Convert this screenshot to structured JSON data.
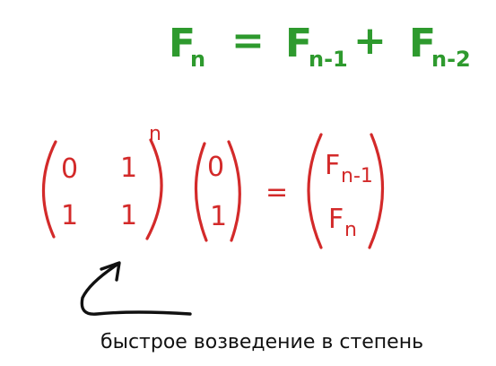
{
  "colors": {
    "formula_green": "#2e9a2e",
    "matrix_red": "#d32a2a",
    "ink_black": "#111111"
  },
  "recurrence": {
    "lhs_main": "F",
    "lhs_sub": "n",
    "equals": "=",
    "term1_main": "F",
    "term1_sub": "n-1",
    "plus": "+",
    "term2_main": "F",
    "term2_sub": "n-2"
  },
  "matrix_equation": {
    "transition_matrix": {
      "r1c1": "0",
      "r1c2": "1",
      "r2c1": "1",
      "r2c2": "1"
    },
    "exponent": "n",
    "start_vector": {
      "top": "0",
      "bottom": "1"
    },
    "equals": "=",
    "result_vector": {
      "top_main": "F",
      "top_sub": "n-1",
      "bottom_main": "F",
      "bottom_sub": "n"
    }
  },
  "annotation": {
    "caption": "быстрое возведение в степень",
    "icon": "curved-arrow-icon"
  }
}
